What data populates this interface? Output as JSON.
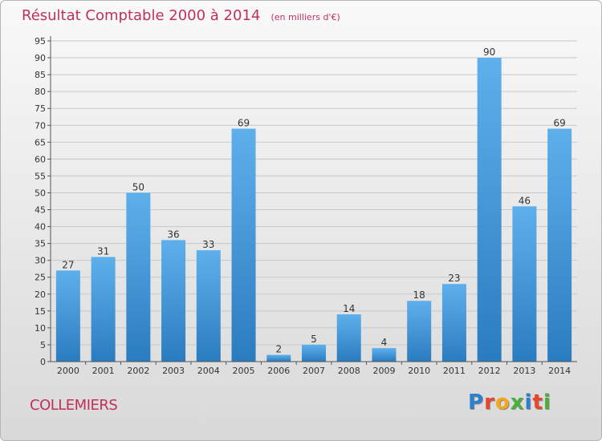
{
  "title": "Résultat Comptable 2000 à 2014",
  "subtitle": "(en milliers d'€)",
  "commune": "COLLEMIERS",
  "logo": {
    "text": "Proxiti",
    "letters": [
      {
        "char": "P",
        "color": "#2f7fd0"
      },
      {
        "char": "r",
        "color": "#e8452c"
      },
      {
        "char": "o",
        "color": "#f2a81d"
      },
      {
        "char": "x",
        "color": "#4caf3c"
      },
      {
        "char": "i",
        "color": "#2f7fd0"
      },
      {
        "char": "t",
        "color": "#e8452c"
      },
      {
        "char": "i",
        "color": "#4caf3c"
      }
    ]
  },
  "colors": {
    "title": "#c0305a",
    "bar_light": "#5eb0ec",
    "bar_dark": "#2a7cc0",
    "grid": "#c8c8c8",
    "axis": "#555555"
  },
  "chart_data": {
    "type": "bar",
    "categories": [
      "2000",
      "2001",
      "2002",
      "2003",
      "2004",
      "2005",
      "2006",
      "2007",
      "2008",
      "2009",
      "2010",
      "2011",
      "2012",
      "2013",
      "2014"
    ],
    "values": [
      27,
      31,
      50,
      36,
      33,
      69,
      2,
      5,
      14,
      4,
      18,
      23,
      90,
      46,
      69
    ],
    "title": "Résultat Comptable 2000 à 2014",
    "subtitle": "(en milliers d'€)",
    "xlabel": "",
    "ylabel": "",
    "ylim": [
      0,
      95
    ],
    "yticks": [
      0,
      5,
      10,
      15,
      20,
      25,
      30,
      35,
      40,
      45,
      50,
      55,
      60,
      65,
      70,
      75,
      80,
      85,
      90,
      95
    ],
    "grid": true,
    "legend": "none"
  }
}
